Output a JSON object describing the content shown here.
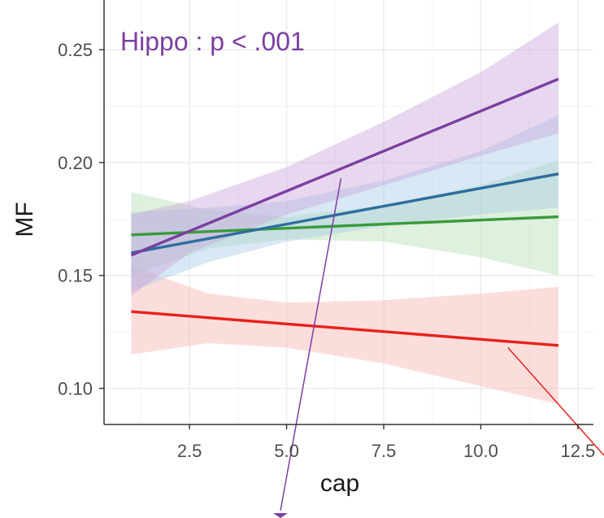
{
  "chart_data": {
    "type": "line",
    "title": "",
    "xlabel": "cap",
    "ylabel": "MF",
    "xlim": [
      0.3,
      12.9
    ],
    "ylim": [
      0.084,
      0.272
    ],
    "x_ticks": [
      2.5,
      5.0,
      7.5,
      10.0,
      12.5
    ],
    "x_tick_labels": [
      "2.5",
      "5.0",
      "7.5",
      "10.0",
      "12.5"
    ],
    "y_ticks": [
      0.1,
      0.15,
      0.2,
      0.25
    ],
    "y_tick_labels": [
      "0.10",
      "0.15",
      "0.20",
      "0.25"
    ],
    "grid": true,
    "legend": "none",
    "series": [
      {
        "name": "purple",
        "color": "#7b3fa0",
        "ribbon_color": "#c9a6dc",
        "x": [
          1,
          12
        ],
        "y": [
          0.159,
          0.237
        ],
        "ribbon_x": [
          1,
          2.5,
          5.0,
          7.5,
          10.0,
          12
        ],
        "ribbon_lower": [
          0.141,
          0.16,
          0.177,
          0.19,
          0.203,
          0.213
        ],
        "ribbon_upper": [
          0.177,
          0.183,
          0.198,
          0.218,
          0.24,
          0.262
        ]
      },
      {
        "name": "blue",
        "color": "#2e6e9e",
        "ribbon_color": "#a9cbe6",
        "x": [
          1,
          12
        ],
        "y": [
          0.16,
          0.195
        ],
        "ribbon_x": [
          1,
          3.0,
          5.0,
          7.5,
          10.0,
          12
        ],
        "ribbon_lower": [
          0.143,
          0.156,
          0.165,
          0.172,
          0.177,
          0.18
        ],
        "ribbon_upper": [
          0.178,
          0.18,
          0.183,
          0.192,
          0.205,
          0.221
        ]
      },
      {
        "name": "green",
        "color": "#3a9a3a",
        "ribbon_color": "#b5deb5",
        "x": [
          1,
          12
        ],
        "y": [
          0.168,
          0.176
        ],
        "ribbon_x": [
          1,
          3.0,
          5.0,
          7.5,
          10.0,
          12
        ],
        "ribbon_lower": [
          0.15,
          0.162,
          0.166,
          0.165,
          0.158,
          0.15
        ],
        "ribbon_upper": [
          0.187,
          0.179,
          0.176,
          0.181,
          0.19,
          0.201
        ]
      },
      {
        "name": "red",
        "color": "#e8221b",
        "ribbon_color": "#f7b5b2",
        "x": [
          1,
          12
        ],
        "y": [
          0.134,
          0.119
        ],
        "ribbon_x": [
          1,
          3.0,
          5.0,
          7.5,
          10.0,
          12
        ],
        "ribbon_lower": [
          0.115,
          0.12,
          0.118,
          0.111,
          0.101,
          0.093
        ],
        "ribbon_upper": [
          0.154,
          0.142,
          0.138,
          0.139,
          0.142,
          0.145
        ]
      }
    ],
    "annotations": [
      {
        "text": "Hippo : p < .001",
        "color": "#7b3fa0"
      }
    ],
    "arrows": [
      {
        "color": "#7b3fa0",
        "from": [
          6.4,
          0.193
        ],
        "direction": "down",
        "note": "purple pointer exiting below plot"
      },
      {
        "color": "#e8221b",
        "from": [
          10.7,
          0.118
        ],
        "direction": "down-right",
        "note": "red pointer exiting right"
      }
    ]
  }
}
